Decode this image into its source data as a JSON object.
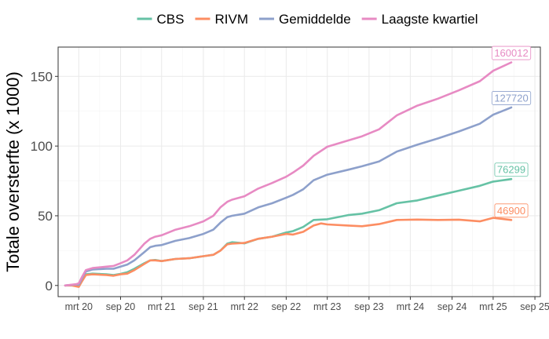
{
  "chart_data": {
    "type": "line",
    "title": "",
    "xlabel": "",
    "ylabel": "Totale oversterfte (x 1000)",
    "ylim": [
      -8,
      171
    ],
    "xlim": [
      "2019-12-01",
      "2025-09-25"
    ],
    "yticks": [
      0,
      50,
      100,
      150
    ],
    "xticks": [
      {
        "date": "2020-03-01",
        "label": "mrt 20"
      },
      {
        "date": "2020-09-01",
        "label": "sep 20"
      },
      {
        "date": "2021-03-01",
        "label": "mrt 21"
      },
      {
        "date": "2021-09-01",
        "label": "sep 21"
      },
      {
        "date": "2022-03-01",
        "label": "mrt 22"
      },
      {
        "date": "2022-09-01",
        "label": "sep 22"
      },
      {
        "date": "2023-03-01",
        "label": "mrt 23"
      },
      {
        "date": "2023-09-01",
        "label": "sep 23"
      },
      {
        "date": "2024-03-01",
        "label": "mrt 24"
      },
      {
        "date": "2024-09-01",
        "label": "sep 24"
      },
      {
        "date": "2025-03-01",
        "label": "mrt 25"
      },
      {
        "date": "2025-09-01",
        "label": "sep 25"
      }
    ],
    "grid": true,
    "legend_position": "top",
    "series": [
      {
        "name": "CBS",
        "color": "#66c2a5",
        "end_label": "76299",
        "points": [
          [
            "2020-01-01",
            0
          ],
          [
            "2020-02-20",
            0.5
          ],
          [
            "2020-03-01",
            -0.5
          ],
          [
            "2020-03-15",
            3
          ],
          [
            "2020-04-01",
            8
          ],
          [
            "2020-05-01",
            8.5
          ],
          [
            "2020-07-01",
            8
          ],
          [
            "2020-08-01",
            7.5
          ],
          [
            "2020-09-01",
            8.3
          ],
          [
            "2020-10-01",
            9.5
          ],
          [
            "2020-11-01",
            12
          ],
          [
            "2020-12-15",
            16
          ],
          [
            "2021-01-10",
            18
          ],
          [
            "2021-02-01",
            18.3
          ],
          [
            "2021-03-01",
            17.5
          ],
          [
            "2021-05-01",
            19
          ],
          [
            "2021-07-01",
            19.5
          ],
          [
            "2021-09-01",
            21
          ],
          [
            "2021-10-15",
            22
          ],
          [
            "2021-11-15",
            25
          ],
          [
            "2021-12-15",
            30
          ],
          [
            "2022-01-05",
            31
          ],
          [
            "2022-03-01",
            30.2
          ],
          [
            "2022-05-01",
            33.5
          ],
          [
            "2022-07-01",
            35
          ],
          [
            "2022-09-01",
            38
          ],
          [
            "2022-10-01",
            39
          ],
          [
            "2022-11-15",
            42
          ],
          [
            "2022-12-31",
            47
          ],
          [
            "2023-03-01",
            47.5
          ],
          [
            "2023-06-01",
            50.5
          ],
          [
            "2023-08-01",
            51.5
          ],
          [
            "2023-10-15",
            54
          ],
          [
            "2024-01-01",
            59
          ],
          [
            "2024-04-01",
            61
          ],
          [
            "2024-07-01",
            64.5
          ],
          [
            "2024-10-01",
            68
          ],
          [
            "2025-01-01",
            71.5
          ],
          [
            "2025-03-01",
            74.5
          ],
          [
            "2025-05-20",
            76.3
          ]
        ]
      },
      {
        "name": "RIVM",
        "color": "#fc8d62",
        "end_label": "46900",
        "points": [
          [
            "2020-01-01",
            0
          ],
          [
            "2020-02-01",
            0
          ],
          [
            "2020-03-01",
            -1
          ],
          [
            "2020-03-15",
            3
          ],
          [
            "2020-04-01",
            7.5
          ],
          [
            "2020-05-01",
            8
          ],
          [
            "2020-07-01",
            7.5
          ],
          [
            "2020-08-01",
            7
          ],
          [
            "2020-09-01",
            8
          ],
          [
            "2020-10-01",
            8.5
          ],
          [
            "2020-11-01",
            11
          ],
          [
            "2020-12-15",
            15.5
          ],
          [
            "2021-01-10",
            18
          ],
          [
            "2021-02-01",
            18
          ],
          [
            "2021-03-01",
            17.5
          ],
          [
            "2021-05-01",
            19
          ],
          [
            "2021-07-01",
            19.5
          ],
          [
            "2021-09-01",
            21
          ],
          [
            "2021-10-15",
            22
          ],
          [
            "2021-11-15",
            25
          ],
          [
            "2021-12-15",
            29.5
          ],
          [
            "2022-01-05",
            30
          ],
          [
            "2022-03-01",
            30.5
          ],
          [
            "2022-05-01",
            33.5
          ],
          [
            "2022-07-01",
            35
          ],
          [
            "2022-09-01",
            37
          ],
          [
            "2022-10-01",
            36.5
          ],
          [
            "2022-11-15",
            38.5
          ],
          [
            "2022-12-31",
            43
          ],
          [
            "2023-02-01",
            44.5
          ],
          [
            "2023-03-01",
            43.8
          ],
          [
            "2023-06-01",
            43
          ],
          [
            "2023-08-01",
            42.5
          ],
          [
            "2023-10-15",
            44
          ],
          [
            "2024-01-01",
            47
          ],
          [
            "2024-04-01",
            47.3
          ],
          [
            "2024-07-01",
            47
          ],
          [
            "2024-10-01",
            47.2
          ],
          [
            "2025-01-01",
            46
          ],
          [
            "2025-03-01",
            48.5
          ],
          [
            "2025-05-20",
            47
          ]
        ]
      },
      {
        "name": "Gemiddelde",
        "color": "#8da0cb",
        "end_label": "127720",
        "points": [
          [
            "2020-01-01",
            0
          ],
          [
            "2020-02-20",
            0.7
          ],
          [
            "2020-03-01",
            0.5
          ],
          [
            "2020-03-15",
            5
          ],
          [
            "2020-04-01",
            10
          ],
          [
            "2020-05-01",
            11.5
          ],
          [
            "2020-07-01",
            12
          ],
          [
            "2020-08-01",
            12
          ],
          [
            "2020-09-01",
            13.5
          ],
          [
            "2020-10-01",
            15
          ],
          [
            "2020-11-01",
            18
          ],
          [
            "2020-12-15",
            24
          ],
          [
            "2021-01-10",
            27.5
          ],
          [
            "2021-02-01",
            28.5
          ],
          [
            "2021-03-01",
            29
          ],
          [
            "2021-05-01",
            32
          ],
          [
            "2021-07-01",
            34
          ],
          [
            "2021-09-01",
            37
          ],
          [
            "2021-10-15",
            40
          ],
          [
            "2021-11-15",
            45
          ],
          [
            "2021-12-15",
            49
          ],
          [
            "2022-01-05",
            50
          ],
          [
            "2022-03-01",
            51.5
          ],
          [
            "2022-05-01",
            56
          ],
          [
            "2022-07-01",
            59
          ],
          [
            "2022-09-01",
            63
          ],
          [
            "2022-10-01",
            65
          ],
          [
            "2022-11-15",
            69
          ],
          [
            "2022-12-31",
            75.5
          ],
          [
            "2023-03-01",
            79.5
          ],
          [
            "2023-06-01",
            83
          ],
          [
            "2023-08-01",
            85.5
          ],
          [
            "2023-10-15",
            89
          ],
          [
            "2024-01-01",
            96
          ],
          [
            "2024-04-01",
            101
          ],
          [
            "2024-07-01",
            105.5
          ],
          [
            "2024-10-01",
            110.5
          ],
          [
            "2025-01-01",
            116
          ],
          [
            "2025-03-01",
            122.5
          ],
          [
            "2025-05-20",
            127.7
          ]
        ]
      },
      {
        "name": "Laagste kwartiel",
        "color": "#e78ac3",
        "end_label": "160012",
        "points": [
          [
            "2020-01-01",
            0
          ],
          [
            "2020-02-20",
            1
          ],
          [
            "2020-03-01",
            1.5
          ],
          [
            "2020-03-15",
            6
          ],
          [
            "2020-04-01",
            11
          ],
          [
            "2020-05-01",
            12.5
          ],
          [
            "2020-07-01",
            13.5
          ],
          [
            "2020-08-01",
            14
          ],
          [
            "2020-09-01",
            16
          ],
          [
            "2020-10-01",
            18
          ],
          [
            "2020-11-01",
            22
          ],
          [
            "2020-12-15",
            30
          ],
          [
            "2021-01-10",
            33.5
          ],
          [
            "2021-02-01",
            35
          ],
          [
            "2021-03-01",
            36
          ],
          [
            "2021-05-01",
            40
          ],
          [
            "2021-07-01",
            42.5
          ],
          [
            "2021-09-01",
            46
          ],
          [
            "2021-10-15",
            50
          ],
          [
            "2021-11-15",
            56
          ],
          [
            "2021-12-15",
            60
          ],
          [
            "2022-01-05",
            61.5
          ],
          [
            "2022-03-01",
            64
          ],
          [
            "2022-05-01",
            69.5
          ],
          [
            "2022-07-01",
            73.5
          ],
          [
            "2022-09-01",
            78
          ],
          [
            "2022-10-01",
            81
          ],
          [
            "2022-11-15",
            86
          ],
          [
            "2022-12-31",
            93
          ],
          [
            "2023-03-01",
            99.5
          ],
          [
            "2023-06-01",
            104
          ],
          [
            "2023-08-01",
            107
          ],
          [
            "2023-10-15",
            112
          ],
          [
            "2024-01-01",
            122
          ],
          [
            "2024-04-01",
            129
          ],
          [
            "2024-07-01",
            134
          ],
          [
            "2024-10-01",
            140
          ],
          [
            "2025-01-01",
            146.5
          ],
          [
            "2025-03-01",
            154
          ],
          [
            "2025-05-20",
            160
          ]
        ]
      }
    ]
  }
}
